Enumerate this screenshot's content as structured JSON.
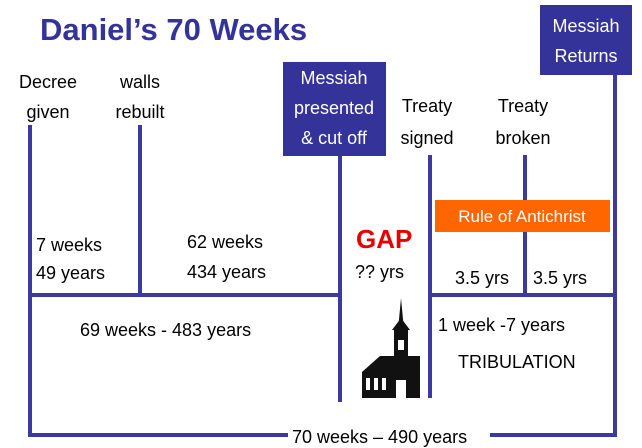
{
  "title": "Daniel’s 70 Weeks",
  "events": {
    "decree": [
      "Decree",
      "given"
    ],
    "walls": [
      "walls",
      "rebuilt"
    ],
    "messiah_presented": [
      "Messiah",
      "presented",
      "& cut off"
    ],
    "treaty_signed": [
      "Treaty",
      "signed"
    ],
    "treaty_broken": [
      "Treaty",
      "broken"
    ],
    "messiah_returns": [
      "Messiah",
      "Returns"
    ]
  },
  "periods": {
    "first": [
      "7 weeks",
      "49 years"
    ],
    "second": [
      "62 weeks",
      "434 years"
    ],
    "gap": {
      "title": "GAP",
      "length": "?? yrs"
    },
    "antichrist": "Rule of Antichrist",
    "half1": "3.5 yrs",
    "half2": "3.5 yrs",
    "sixty_nine": "69 weeks - 483 years",
    "last_week": "1 week -7 years",
    "tribulation": "TRIBULATION",
    "total": "70 weeks – 490 years"
  }
}
